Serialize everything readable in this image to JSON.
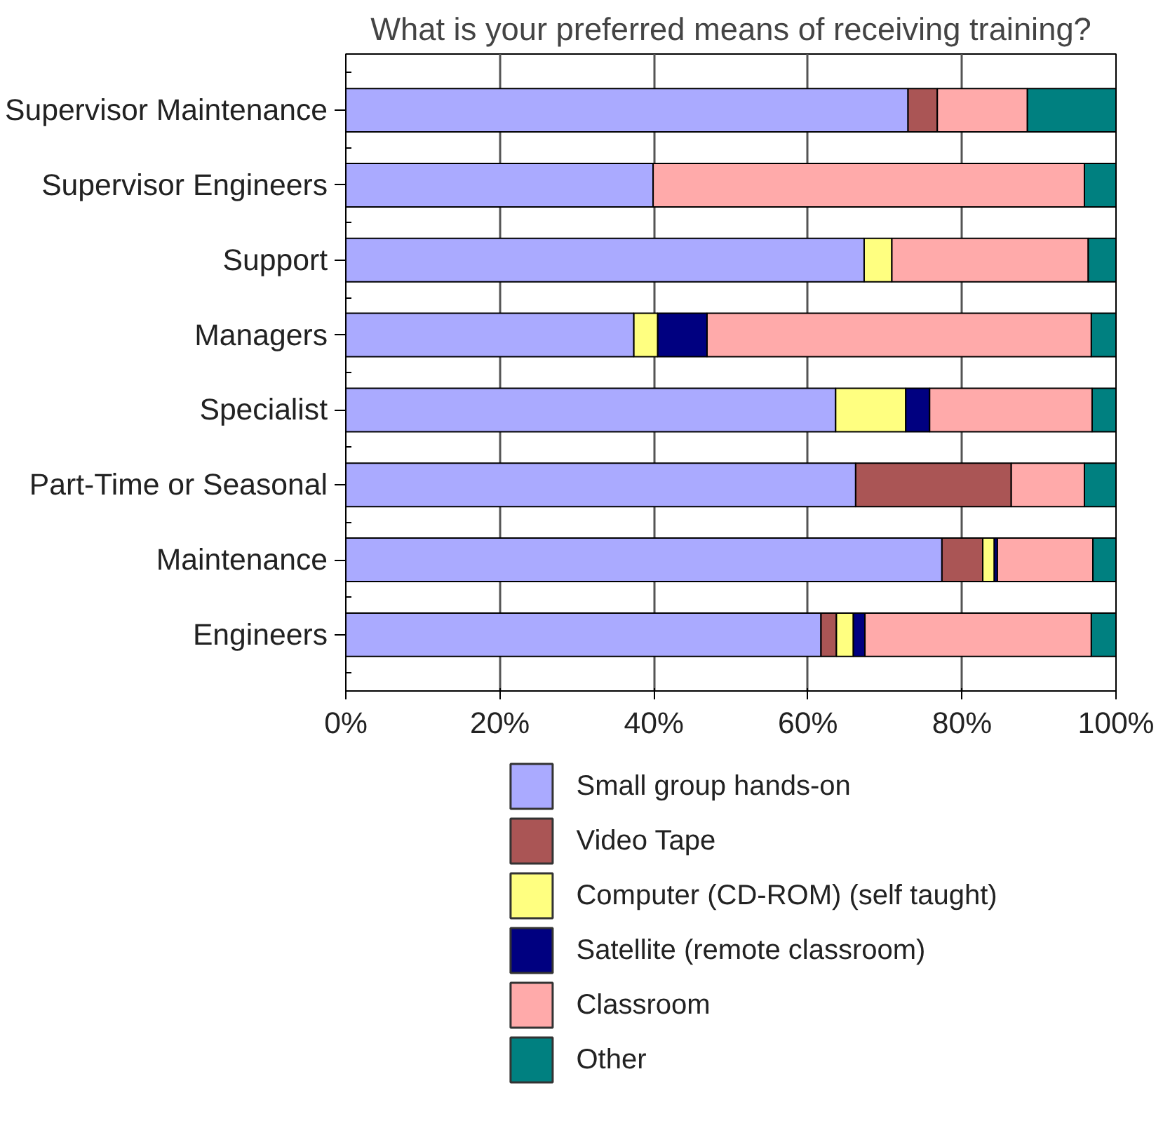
{
  "chart_data": {
    "type": "bar",
    "title": "What is your preferred means of receiving training?",
    "orientation": "horizontal",
    "stacked": true,
    "categories": [
      "Supervisor Maintenance",
      "Supervisor Engineers",
      "Support",
      "Managers",
      "Specialist",
      "Part-Time or Seasonal",
      "Maintenance",
      "Engineers"
    ],
    "series": [
      {
        "name": "Small group hands-on",
        "color": "#aaaaff",
        "values": [
          73.0,
          39.9,
          67.3,
          37.4,
          63.6,
          66.2,
          77.4,
          61.7
        ]
      },
      {
        "name": "Video Tape",
        "color": "#aa5555",
        "values": [
          3.8,
          0,
          0,
          0,
          0,
          20.2,
          5.3,
          2.0
        ]
      },
      {
        "name": "Computer (CD-ROM) (self taught)",
        "color": "#ffff80",
        "values": [
          0,
          0,
          3.6,
          3.1,
          9.1,
          0,
          1.5,
          2.2
        ]
      },
      {
        "name": "Satellite (remote classroom)",
        "color": "#000080",
        "values": [
          0,
          0,
          0,
          6.4,
          3.1,
          0,
          0.4,
          1.5
        ]
      },
      {
        "name": "Classroom",
        "color": "#ffaaaa",
        "values": [
          11.7,
          56.0,
          25.5,
          49.9,
          21.1,
          9.5,
          12.4,
          29.4
        ]
      },
      {
        "name": "Other",
        "color": "#008080",
        "values": [
          11.5,
          4.1,
          3.6,
          3.2,
          3.1,
          4.1,
          3.0,
          3.2
        ]
      }
    ],
    "xlim": [
      0,
      100
    ],
    "xticks": [
      {
        "value": 0,
        "label": "0%"
      },
      {
        "value": 20,
        "label": "20%"
      },
      {
        "value": 40,
        "label": "40%"
      },
      {
        "value": 60,
        "label": "60%"
      },
      {
        "value": 80,
        "label": "80%"
      },
      {
        "value": 100,
        "label": "100%"
      }
    ],
    "grid": "x",
    "legend": "bottom"
  }
}
